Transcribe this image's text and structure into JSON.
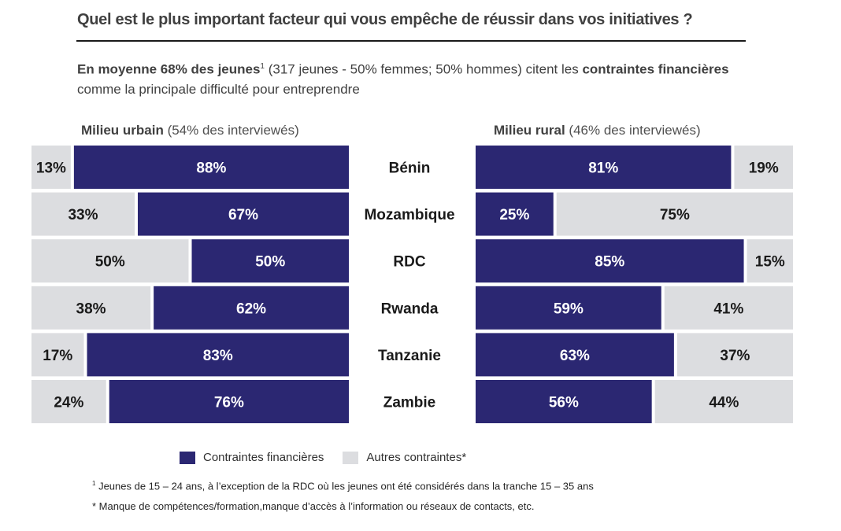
{
  "header": {
    "title": "Quel est le plus important facteur qui vous empêche de réussir dans vos initiatives ?",
    "subtitle": {
      "bold_1": "En moyenne 68% des jeunes",
      "sup": "1",
      "normal_1": " (317 jeunes - 50% femmes; 50% hommes) citent les ",
      "bold_2": "contraintes financières",
      "normal_2": " comme la principale difficulté pour entreprendre"
    }
  },
  "panels": {
    "urban": {
      "bold": "Milieu urbain",
      "normal": " (54% des interviewés)"
    },
    "rural": {
      "bold": "Milieu rural",
      "normal": " (46% des interviewés)"
    }
  },
  "colors": {
    "financial": "#2b2772",
    "other": "#dcdde0",
    "financial_text": "#ffffff",
    "other_text": "#1a1a1a"
  },
  "chart_data": {
    "type": "bar",
    "subtype": "stacked-horizontal-100pct-dual-panel",
    "title": "Quel est le plus important facteur qui vous empêche de réussir dans vos initiatives ?",
    "categories": [
      "Bénin",
      "Mozambique",
      "RDC",
      "Rwanda",
      "Tanzanie",
      "Zambie"
    ],
    "unit": "%",
    "xlim": [
      0,
      100
    ],
    "grid": false,
    "legend_position": "bottom",
    "panels": [
      {
        "name": "Milieu urbain (54% des interviewés)",
        "orientation": "right-aligned",
        "series": [
          {
            "name": "Contraintes financières",
            "values": [
              88,
              67,
              50,
              62,
              83,
              76
            ]
          },
          {
            "name": "Autres contraintes*",
            "values": [
              13,
              33,
              50,
              38,
              17,
              24
            ]
          }
        ]
      },
      {
        "name": "Milieu rural (46% des interviewés)",
        "orientation": "left-aligned",
        "series": [
          {
            "name": "Contraintes financières",
            "values": [
              81,
              25,
              85,
              59,
              63,
              56
            ]
          },
          {
            "name": "Autres contraintes*",
            "values": [
              19,
              75,
              15,
              41,
              37,
              44
            ]
          }
        ]
      }
    ]
  },
  "legend": {
    "items": [
      {
        "label": "Contraintes financières",
        "key": "financial"
      },
      {
        "label": "Autres contraintes*",
        "key": "other"
      }
    ]
  },
  "footnotes": {
    "note1_sup": "1",
    "note1": " Jeunes de 15 – 24 ans, à l’exception de la RDC où les jeunes ont été considérés dans la tranche 15 – 35 ans",
    "note2": "* Manque de compétences/formation,manque d’accès à l’information ou réseaux de contacts, etc."
  }
}
